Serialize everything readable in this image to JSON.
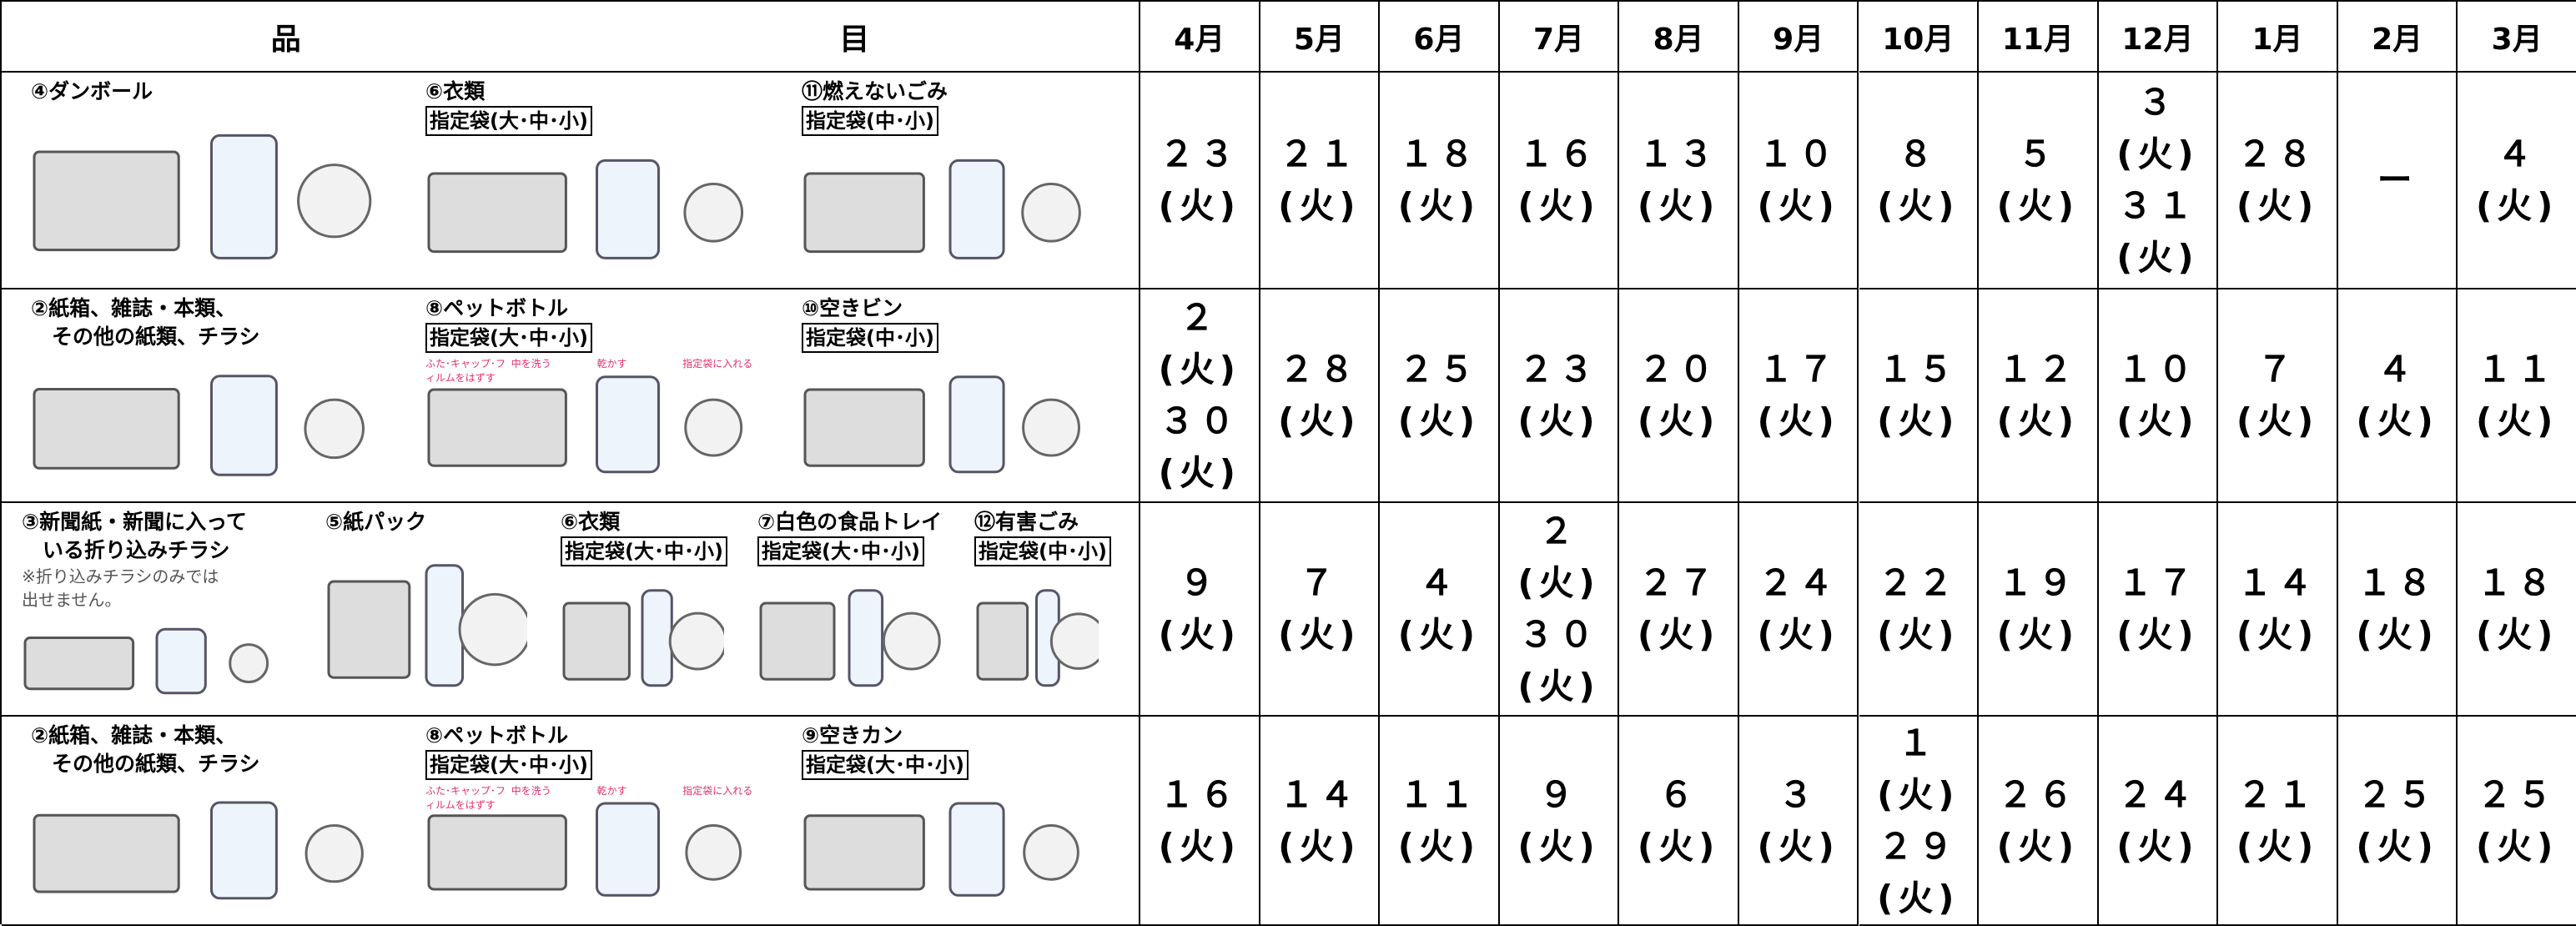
{
  "header": {
    "item": [
      "品",
      "目"
    ],
    "months": [
      "4月",
      "5月",
      "6月",
      "7月",
      "8月",
      "9月",
      "10月",
      "11月",
      "12月",
      "1月",
      "2月",
      "3月"
    ]
  },
  "rows": [
    {
      "items": [
        {
          "label": [
            "④ダンボール"
          ]
        },
        {
          "label": [
            "⑥衣類"
          ],
          "bag": "指定袋(大･中･小)"
        },
        {
          "label": [
            "⑪燃えないごみ"
          ],
          "bag": "指定袋(中･小)"
        }
      ],
      "dates": [
        [
          "２３",
          "(火)"
        ],
        [
          "２１",
          "(火)"
        ],
        [
          "１８",
          "(火)"
        ],
        [
          "１６",
          "(火)"
        ],
        [
          "１３",
          "(火)"
        ],
        [
          "１０",
          "(火)"
        ],
        [
          "８",
          "(火)"
        ],
        [
          "５",
          "(火)"
        ],
        [
          "３",
          "(火)",
          "３１",
          "(火)"
        ],
        [
          "２８",
          "(火)"
        ],
        [
          "ー"
        ],
        [
          "４",
          "(火)"
        ]
      ]
    },
    {
      "items": [
        {
          "label": [
            "②紙箱、雑誌・本類、",
            "　その他の紙類、チラシ"
          ]
        },
        {
          "label": [
            "⑧ペットボトル"
          ],
          "bag": "指定袋(大･中･小)",
          "steps": [
            "ふた･キャップ･フィルムをはずす",
            "中を洗う",
            "乾かす",
            "指定袋に入れる"
          ]
        },
        {
          "label": [
            "⑩空きビン"
          ],
          "bag": "指定袋(中･小)"
        }
      ],
      "dates": [
        [
          "２",
          "(火)",
          "３０",
          "(火)"
        ],
        [
          "２８",
          "(火)"
        ],
        [
          "２５",
          "(火)"
        ],
        [
          "２３",
          "(火)"
        ],
        [
          "２０",
          "(火)"
        ],
        [
          "１７",
          "(火)"
        ],
        [
          "１５",
          "(火)"
        ],
        [
          "１２",
          "(火)"
        ],
        [
          "１０",
          "(火)"
        ],
        [
          "７",
          "(火)"
        ],
        [
          "４",
          "(火)"
        ],
        [
          "１１",
          "(火)"
        ]
      ]
    },
    {
      "items": [
        {
          "label": [
            "③新聞紙・新聞に入って",
            "　いる折り込みチラシ"
          ],
          "note": [
            "※折り込みチラシのみでは",
            "出せません。"
          ]
        },
        {
          "label": [
            "⑤紙パック"
          ]
        },
        {
          "label": [
            "⑥衣類"
          ],
          "bag": "指定袋(大･中･小)"
        },
        {
          "label": [
            "⑦白色の食品トレイ"
          ],
          "bag": "指定袋(大･中･小)"
        },
        {
          "label": [
            "⑫有害ごみ"
          ],
          "bag": "指定袋(中･小)"
        }
      ],
      "dates": [
        [
          "９",
          "(火)"
        ],
        [
          "７",
          "(火)"
        ],
        [
          "４",
          "(火)"
        ],
        [
          "２",
          "(火)",
          "３０",
          "(火)"
        ],
        [
          "２７",
          "(火)"
        ],
        [
          "２４",
          "(火)"
        ],
        [
          "２２",
          "(火)"
        ],
        [
          "１９",
          "(火)"
        ],
        [
          "１７",
          "(火)"
        ],
        [
          "１４",
          "(火)"
        ],
        [
          "１８",
          "(火)"
        ],
        [
          "１８",
          "(火)"
        ]
      ]
    },
    {
      "items": [
        {
          "label": [
            "②紙箱、雑誌・本類、",
            "　その他の紙類、チラシ"
          ]
        },
        {
          "label": [
            "⑧ペットボトル"
          ],
          "bag": "指定袋(大･中･小)",
          "steps": [
            "ふた･キャップ･フィルムをはずす",
            "中を洗う",
            "乾かす",
            "指定袋に入れる"
          ]
        },
        {
          "label": [
            "⑨空きカン"
          ],
          "bag": "指定袋(大･中･小)"
        }
      ],
      "dates": [
        [
          "１６",
          "(火)"
        ],
        [
          "１４",
          "(火)"
        ],
        [
          "１１",
          "(火)"
        ],
        [
          "９",
          "(火)"
        ],
        [
          "６",
          "(火)"
        ],
        [
          "３",
          "(火)"
        ],
        [
          "１",
          "(火)",
          "２９",
          "(火)"
        ],
        [
          "２６",
          "(火)"
        ],
        [
          "２４",
          "(火)"
        ],
        [
          "２１",
          "(火)"
        ],
        [
          "２５",
          "(火)"
        ],
        [
          "２５",
          "(火)"
        ]
      ]
    }
  ]
}
